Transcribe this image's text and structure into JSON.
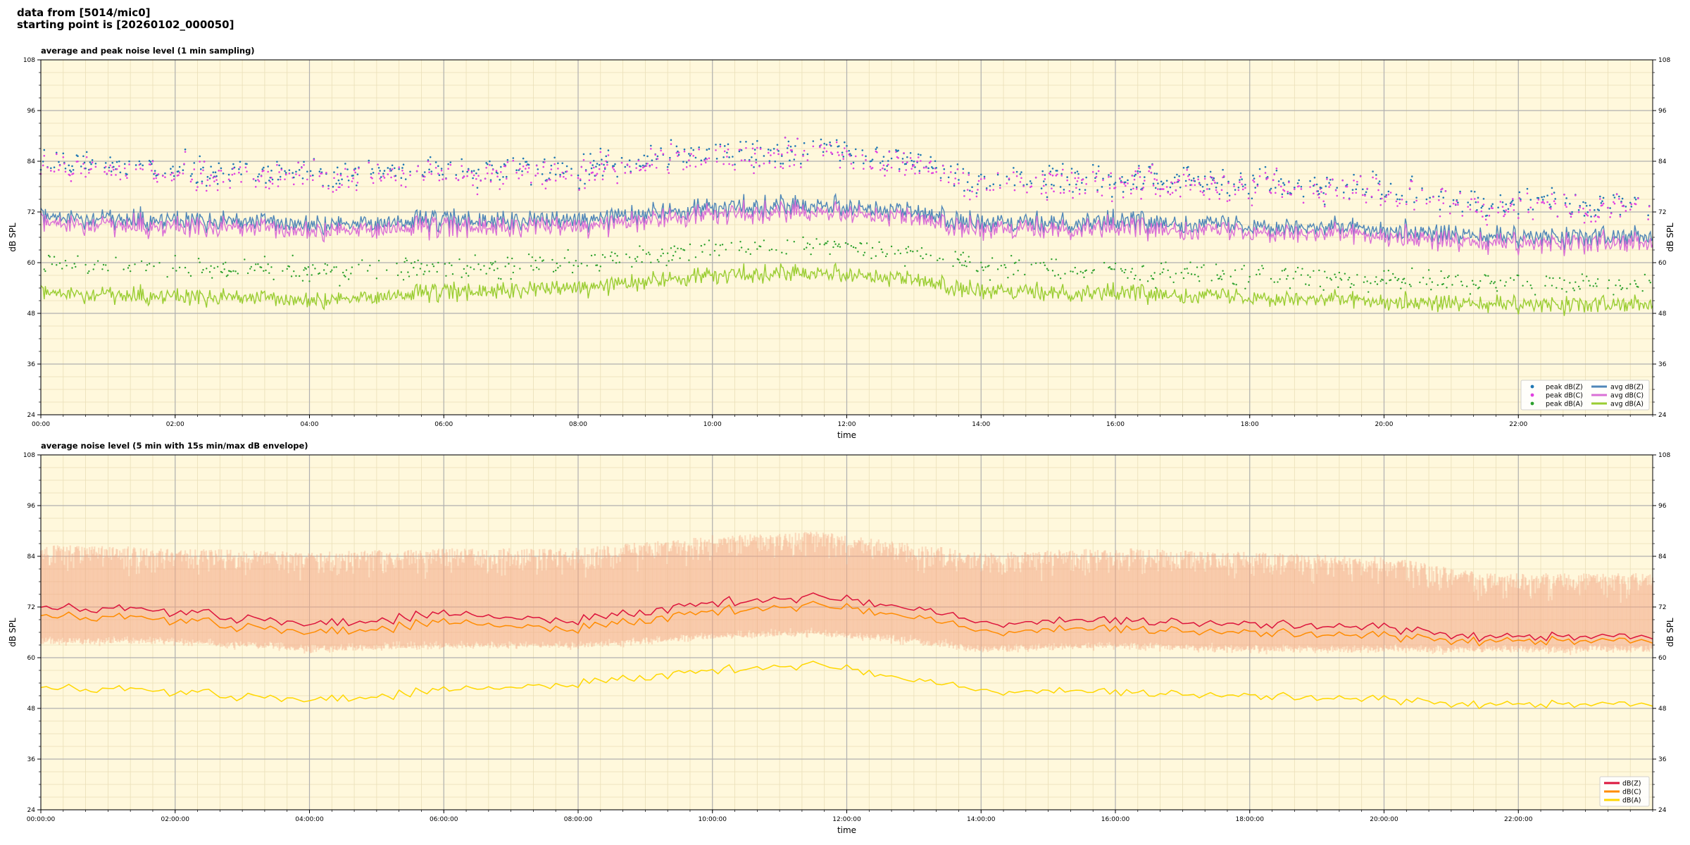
{
  "header": {
    "line1": "data from [5014/mic0]",
    "line2": "starting point is [20260102_000050]"
  },
  "chart_data": [
    {
      "type": "line",
      "title": "average and peak noise level (1 min sampling)",
      "xlabel": "time",
      "ylabel": "dB SPL",
      "xlim_hours": [
        0,
        24
      ],
      "ylim": [
        24,
        108
      ],
      "yticks": [
        24,
        36,
        48,
        60,
        72,
        84,
        96,
        108
      ],
      "xtick_labels": [
        "00:00",
        "02:00",
        "04:00",
        "06:00",
        "08:00",
        "10:00",
        "12:00",
        "14:00",
        "16:00",
        "18:00",
        "20:00",
        "22:00"
      ],
      "grid": true,
      "legend_position": "bottom-right",
      "legend_columns": 2,
      "series": [
        {
          "name": "peak dB(Z)",
          "style": "scatter",
          "color": "#1f77b4"
        },
        {
          "name": "peak dB(C)",
          "style": "scatter",
          "color": "#e040e0"
        },
        {
          "name": "peak dB(A)",
          "style": "scatter",
          "color": "#2ca02c"
        },
        {
          "name": "avg dB(Z)",
          "style": "line",
          "color": "#4f86b8"
        },
        {
          "name": "avg dB(C)",
          "style": "line",
          "color": "#da70d6"
        },
        {
          "name": "avg dB(A)",
          "style": "line",
          "color": "#9acd32"
        }
      ],
      "level_profile": {
        "hours": [
          0,
          2,
          4,
          6,
          8,
          10,
          11.5,
          13,
          14,
          16,
          18,
          20,
          21.5,
          22,
          24
        ],
        "avg_dBZ": [
          71,
          70,
          69,
          70,
          70,
          73,
          74,
          72,
          69,
          70,
          69,
          68,
          66,
          66,
          66
        ],
        "avg_dBC": [
          70,
          69,
          68,
          69,
          69,
          72,
          73,
          71,
          68,
          69,
          68,
          67,
          65,
          65,
          65
        ],
        "avg_dBA": [
          53,
          52,
          51,
          53,
          54,
          57,
          58,
          56,
          53,
          53,
          52,
          51,
          50,
          50,
          50
        ],
        "peak_dBZ": [
          83,
          82,
          81,
          82,
          82,
          86,
          87,
          84,
          80,
          80,
          79,
          77,
          74,
          74,
          74
        ],
        "peak_dBA": [
          60,
          59,
          58,
          59,
          60,
          63,
          64,
          62,
          59,
          58,
          57,
          56,
          55,
          55,
          55
        ]
      }
    },
    {
      "type": "area",
      "title": "average noise level (5 min with 15s min/max dB envelope)",
      "xlabel": "time",
      "ylabel": "dB SPL",
      "xlim_hours": [
        0,
        24
      ],
      "ylim": [
        24,
        108
      ],
      "yticks": [
        24,
        36,
        48,
        60,
        72,
        84,
        96,
        108
      ],
      "xtick_labels": [
        "00:00:00",
        "02:00:00",
        "04:00:00",
        "06:00:00",
        "08:00:00",
        "10:00:00",
        "12:00:00",
        "14:00:00",
        "16:00:00",
        "18:00:00",
        "20:00:00",
        "22:00:00"
      ],
      "grid": true,
      "legend_position": "bottom-right",
      "series": [
        {
          "name": "dB(Z)",
          "color": "#dc143c"
        },
        {
          "name": "dB(C)",
          "color": "#ff8c00"
        },
        {
          "name": "dB(A)",
          "color": "#ffd700"
        }
      ],
      "envelope_color": "#f4a582",
      "level_profile": {
        "hours": [
          0,
          2,
          4,
          6,
          8,
          10,
          11.5,
          13,
          14,
          16,
          18,
          20,
          21.5,
          22,
          24
        ],
        "dBZ": [
          72,
          71,
          68,
          70,
          69,
          73,
          74,
          72,
          68,
          69,
          68,
          67,
          65,
          65,
          65
        ],
        "dBC": [
          70,
          69,
          66,
          68,
          67,
          71,
          72,
          70,
          66,
          67,
          66,
          65,
          64,
          64,
          64
        ],
        "dBA": [
          53,
          52,
          50,
          52,
          54,
          57,
          58,
          55,
          52,
          52,
          51,
          50,
          49,
          49,
          49
        ],
        "envelope_min": [
          64,
          64,
          62,
          63,
          63,
          65,
          66,
          64,
          62,
          63,
          62,
          62,
          62,
          62,
          62
        ],
        "envelope_max": [
          87,
          86,
          85,
          86,
          86,
          89,
          90,
          87,
          85,
          86,
          85,
          84,
          80,
          80,
          80
        ]
      }
    }
  ]
}
